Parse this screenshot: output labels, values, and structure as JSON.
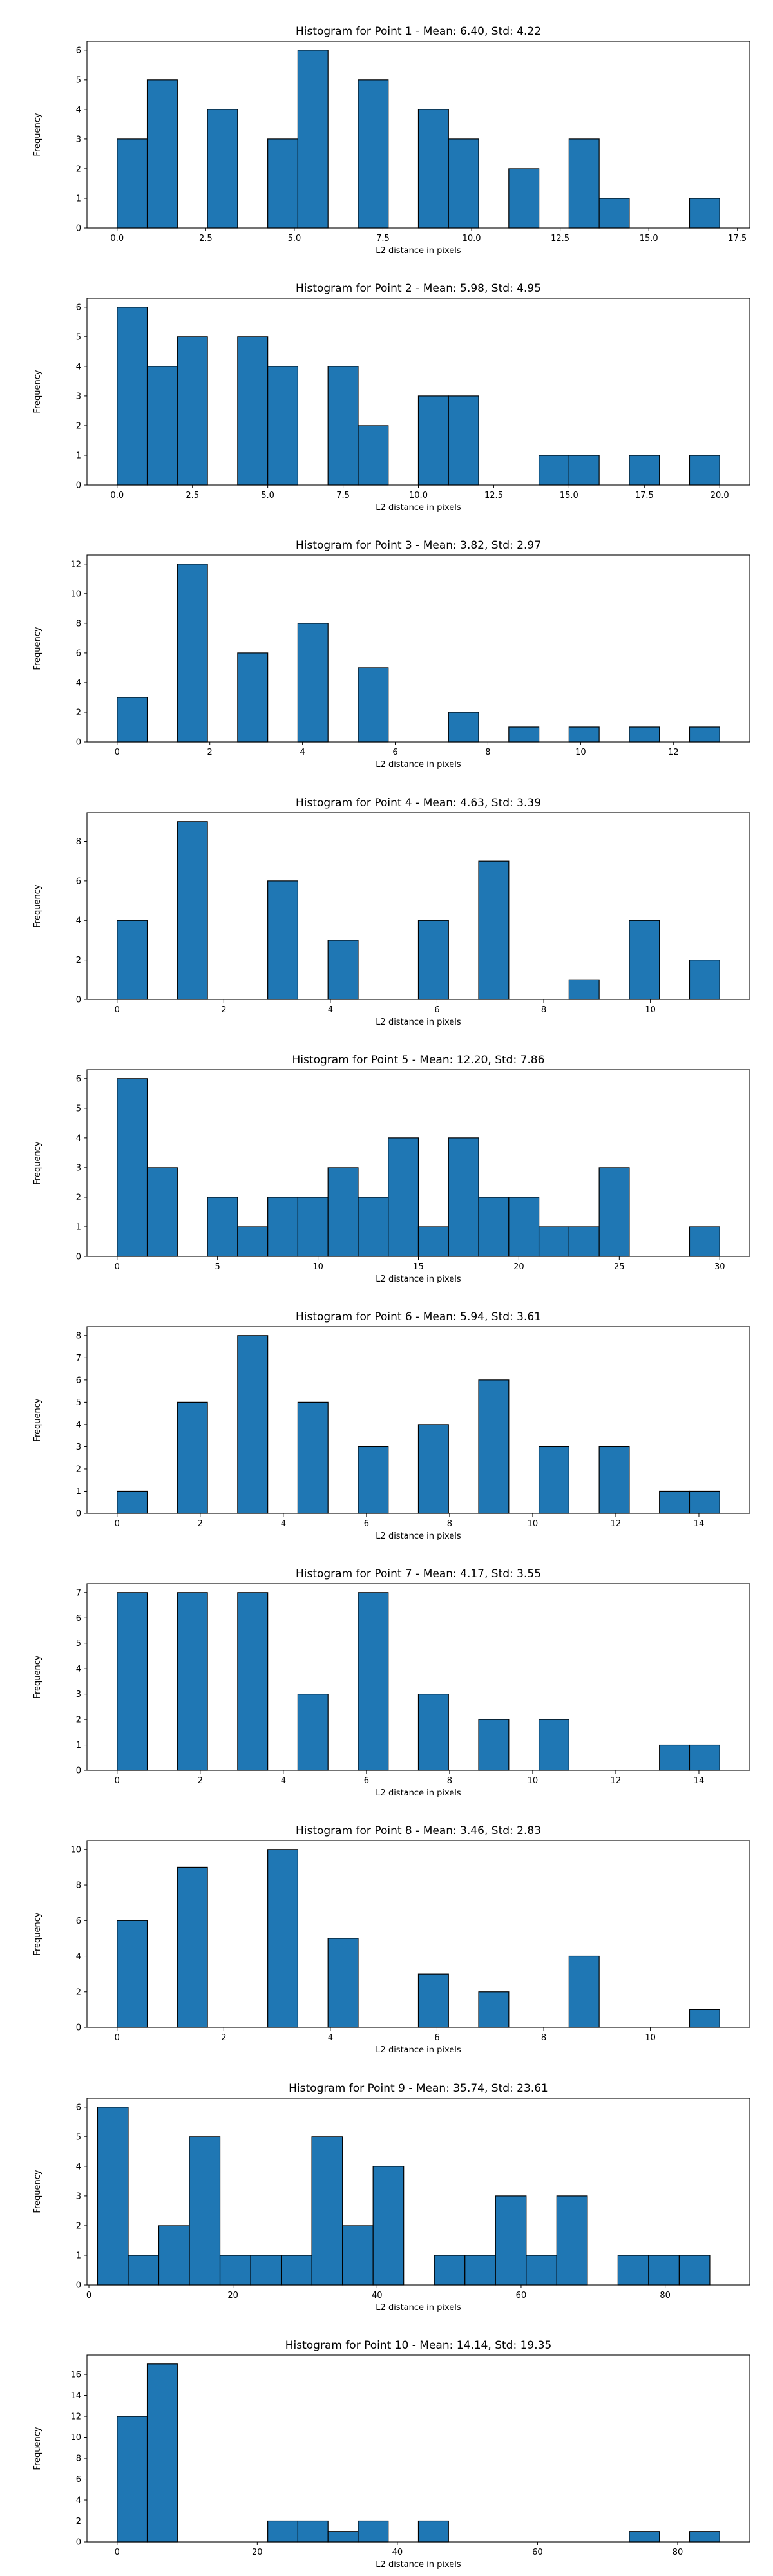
{
  "chart_data": [
    {
      "type": "bar",
      "title": "Histogram for Point 1 - Mean: 6.40, Std: 4.22",
      "xlabel": "L2 distance in pixels",
      "ylabel": "Frequency",
      "xlim": [
        -0.85,
        17.85
      ],
      "ylim": [
        0,
        6.3
      ],
      "xticks": [
        0.0,
        2.5,
        5.0,
        7.5,
        10.0,
        12.5,
        15.0,
        17.5
      ],
      "xtick_labels": [
        "0.0",
        "2.5",
        "5.0",
        "7.5",
        "10.0",
        "12.5",
        "15.0",
        "17.5"
      ],
      "yticks": [
        0,
        1,
        2,
        3,
        4,
        5,
        6
      ],
      "bin_edges": [
        0.0,
        0.85,
        1.7,
        2.55,
        3.4,
        4.25,
        5.1,
        5.95,
        6.8,
        7.65,
        8.5,
        9.35,
        10.2,
        11.05,
        11.9,
        12.75,
        13.6,
        14.45,
        15.3,
        16.15,
        17.0
      ],
      "counts": [
        3,
        5,
        0,
        4,
        0,
        3,
        6,
        0,
        5,
        0,
        4,
        3,
        0,
        2,
        0,
        3,
        1,
        0,
        0,
        1
      ]
    },
    {
      "type": "bar",
      "title": "Histogram for Point 2 - Mean: 5.98, Std: 4.95",
      "xlabel": "L2 distance in pixels",
      "ylabel": "Frequency",
      "xlim": [
        -1.0,
        21.0
      ],
      "ylim": [
        0,
        6.3
      ],
      "xticks": [
        0.0,
        2.5,
        5.0,
        7.5,
        10.0,
        12.5,
        15.0,
        17.5,
        20.0
      ],
      "xtick_labels": [
        "0.0",
        "2.5",
        "5.0",
        "7.5",
        "10.0",
        "12.5",
        "15.0",
        "17.5",
        "20.0"
      ],
      "yticks": [
        0,
        1,
        2,
        3,
        4,
        5,
        6
      ],
      "bin_edges": [
        0.0,
        1.0,
        2.0,
        3.0,
        4.0,
        5.0,
        6.0,
        7.0,
        8.0,
        9.0,
        10.0,
        11.0,
        12.0,
        13.0,
        14.0,
        15.0,
        16.0,
        17.0,
        18.0,
        19.0,
        20.0
      ],
      "counts": [
        6,
        4,
        5,
        0,
        5,
        4,
        0,
        4,
        2,
        0,
        3,
        3,
        0,
        0,
        1,
        1,
        0,
        1,
        0,
        1
      ]
    },
    {
      "type": "bar",
      "title": "Histogram for Point 3 - Mean: 3.82, Std: 2.97",
      "xlabel": "L2 distance in pixels",
      "ylabel": "Frequency",
      "xlim": [
        -0.65,
        13.65
      ],
      "ylim": [
        0,
        12.6
      ],
      "xticks": [
        0,
        2,
        4,
        6,
        8,
        10,
        12
      ],
      "xtick_labels": [
        "0",
        "2",
        "4",
        "6",
        "8",
        "10",
        "12"
      ],
      "yticks": [
        0,
        2,
        4,
        6,
        8,
        10,
        12
      ],
      "bin_edges": [
        0.0,
        0.65,
        1.3,
        1.95,
        2.6,
        3.25,
        3.9,
        4.55,
        5.2,
        5.85,
        6.5,
        7.15,
        7.8,
        8.45,
        9.1,
        9.75,
        10.4,
        11.05,
        11.7,
        12.35,
        13.0
      ],
      "counts": [
        3,
        0,
        12,
        0,
        6,
        0,
        8,
        0,
        5,
        0,
        0,
        2,
        0,
        1,
        0,
        1,
        0,
        1,
        0,
        1
      ]
    },
    {
      "type": "bar",
      "title": "Histogram for Point 4 - Mean: 4.63, Std: 3.39",
      "xlabel": "L2 distance in pixels",
      "ylabel": "Frequency",
      "xlim": [
        -0.565,
        11.865
      ],
      "ylim": [
        0,
        9.45
      ],
      "xticks": [
        0,
        2,
        4,
        6,
        8,
        10
      ],
      "xtick_labels": [
        "0",
        "2",
        "4",
        "6",
        "8",
        "10"
      ],
      "yticks": [
        0,
        2,
        4,
        6,
        8
      ],
      "bin_edges": [
        0.0,
        0.565,
        1.13,
        1.695,
        2.26,
        2.825,
        3.39,
        3.955,
        4.52,
        5.085,
        5.65,
        6.215,
        6.78,
        7.345,
        7.91,
        8.475,
        9.04,
        9.605,
        10.17,
        10.735,
        11.3
      ],
      "counts": [
        4,
        0,
        9,
        0,
        0,
        6,
        0,
        3,
        0,
        0,
        4,
        0,
        7,
        0,
        0,
        1,
        0,
        4,
        0,
        2
      ]
    },
    {
      "type": "bar",
      "title": "Histogram for Point 5 - Mean: 12.20, Std: 7.86",
      "xlabel": "L2 distance in pixels",
      "ylabel": "Frequency",
      "xlim": [
        -1.5,
        31.5
      ],
      "ylim": [
        0,
        6.3
      ],
      "xticks": [
        0,
        5,
        10,
        15,
        20,
        25,
        30
      ],
      "xtick_labels": [
        "0",
        "5",
        "10",
        "15",
        "20",
        "25",
        "30"
      ],
      "yticks": [
        0,
        1,
        2,
        3,
        4,
        5,
        6
      ],
      "bin_edges": [
        0.0,
        1.5,
        3.0,
        4.5,
        6.0,
        7.5,
        9.0,
        10.5,
        12.0,
        13.5,
        15.0,
        16.5,
        18.0,
        19.5,
        21.0,
        22.5,
        24.0,
        25.5,
        27.0,
        28.5,
        30.0
      ],
      "counts": [
        6,
        3,
        0,
        2,
        1,
        2,
        2,
        3,
        2,
        4,
        1,
        4,
        2,
        2,
        1,
        1,
        3,
        0,
        0,
        1
      ]
    },
    {
      "type": "bar",
      "title": "Histogram for Point 6 - Mean: 5.94, Std: 3.61",
      "xlabel": "L2 distance in pixels",
      "ylabel": "Frequency",
      "xlim": [
        -0.725,
        15.225
      ],
      "ylim": [
        0,
        8.4
      ],
      "xticks": [
        0,
        2,
        4,
        6,
        8,
        10,
        12,
        14
      ],
      "xtick_labels": [
        "0",
        "2",
        "4",
        "6",
        "8",
        "10",
        "12",
        "14"
      ],
      "yticks": [
        0,
        1,
        2,
        3,
        4,
        5,
        6,
        7,
        8
      ],
      "bin_edges": [
        0.0,
        0.725,
        1.45,
        2.175,
        2.9,
        3.625,
        4.35,
        5.075,
        5.8,
        6.525,
        7.25,
        7.975,
        8.7,
        9.425,
        10.15,
        10.875,
        11.6,
        12.325,
        13.05,
        13.775,
        14.5
      ],
      "counts": [
        1,
        0,
        5,
        0,
        8,
        0,
        5,
        0,
        3,
        0,
        4,
        0,
        6,
        0,
        3,
        0,
        3,
        0,
        1,
        1
      ]
    },
    {
      "type": "bar",
      "title": "Histogram for Point 7 - Mean: 4.17, Std: 3.55",
      "xlabel": "L2 distance in pixels",
      "ylabel": "Frequency",
      "xlim": [
        -0.725,
        15.225
      ],
      "ylim": [
        0,
        7.35
      ],
      "xticks": [
        0,
        2,
        4,
        6,
        8,
        10,
        12,
        14
      ],
      "xtick_labels": [
        "0",
        "2",
        "4",
        "6",
        "8",
        "10",
        "12",
        "14"
      ],
      "yticks": [
        0,
        1,
        2,
        3,
        4,
        5,
        6,
        7
      ],
      "bin_edges": [
        0.0,
        0.725,
        1.45,
        2.175,
        2.9,
        3.625,
        4.35,
        5.075,
        5.8,
        6.525,
        7.25,
        7.975,
        8.7,
        9.425,
        10.15,
        10.875,
        11.6,
        12.325,
        13.05,
        13.775,
        14.5
      ],
      "counts": [
        7,
        0,
        7,
        0,
        7,
        0,
        3,
        0,
        7,
        0,
        3,
        0,
        2,
        0,
        2,
        0,
        0,
        0,
        1,
        1
      ]
    },
    {
      "type": "bar",
      "title": "Histogram for Point 8 - Mean: 3.46, Std: 2.83",
      "xlabel": "L2 distance in pixels",
      "ylabel": "Frequency",
      "xlim": [
        -0.565,
        11.865
      ],
      "ylim": [
        0,
        10.5
      ],
      "xticks": [
        0,
        2,
        4,
        6,
        8,
        10
      ],
      "xtick_labels": [
        "0",
        "2",
        "4",
        "6",
        "8",
        "10"
      ],
      "yticks": [
        0,
        2,
        4,
        6,
        8,
        10
      ],
      "bin_edges": [
        0.0,
        0.565,
        1.13,
        1.695,
        2.26,
        2.825,
        3.39,
        3.955,
        4.52,
        5.085,
        5.65,
        6.215,
        6.78,
        7.345,
        7.91,
        8.475,
        9.04,
        9.605,
        10.17,
        10.735,
        11.3
      ],
      "counts": [
        6,
        0,
        9,
        0,
        0,
        10,
        0,
        5,
        0,
        0,
        3,
        0,
        2,
        0,
        0,
        4,
        0,
        0,
        0,
        1
      ]
    },
    {
      "type": "bar",
      "title": "Histogram for Point 9 - Mean: 35.74, Std: 23.61",
      "xlabel": "L2 distance in pixels",
      "ylabel": "Frequency",
      "xlim": [
        -0.27,
        91.75
      ],
      "ylim": [
        0,
        6.3
      ],
      "xticks": [
        0,
        20,
        40,
        60,
        80
      ],
      "xtick_labels": [
        "0",
        "20",
        "40",
        "60",
        "80"
      ],
      "yticks": [
        0,
        1,
        2,
        3,
        4,
        5,
        6
      ],
      "bin_edges": [
        1.2,
        5.45,
        9.7,
        13.95,
        18.2,
        22.45,
        26.7,
        30.95,
        35.2,
        39.45,
        43.7,
        47.95,
        52.2,
        56.45,
        60.7,
        64.95,
        69.2,
        73.45,
        77.7,
        81.95,
        86.2
      ],
      "counts": [
        6,
        1,
        2,
        5,
        1,
        1,
        1,
        5,
        2,
        4,
        0,
        1,
        1,
        3,
        1,
        3,
        0,
        1,
        1,
        1
      ]
    },
    {
      "type": "bar",
      "title": "Histogram for Point 10 - Mean: 14.14, Std: 19.35",
      "xlabel": "L2 distance in pixels",
      "ylabel": "Frequency",
      "xlim": [
        -4.3,
        90.3
      ],
      "ylim": [
        0,
        17.85
      ],
      "xticks": [
        0,
        20,
        40,
        60,
        80
      ],
      "xtick_labels": [
        "0",
        "20",
        "40",
        "60",
        "80"
      ],
      "yticks": [
        0,
        2,
        4,
        6,
        8,
        10,
        12,
        14,
        16
      ],
      "bin_edges": [
        0.0,
        4.3,
        8.6,
        12.9,
        17.2,
        21.5,
        25.8,
        30.1,
        34.4,
        38.7,
        43.0,
        47.3,
        51.6,
        55.9,
        60.2,
        64.5,
        68.8,
        73.1,
        77.4,
        81.7,
        86.0
      ],
      "counts": [
        12,
        17,
        0,
        0,
        0,
        2,
        2,
        1,
        2,
        0,
        2,
        0,
        0,
        0,
        0,
        0,
        0,
        1,
        0,
        1
      ]
    }
  ],
  "colors": {
    "bar_fill": "#1f77b4",
    "bar_edge": "#000000",
    "axis": "#000000",
    "text": "#000000",
    "background": "#ffffff"
  }
}
